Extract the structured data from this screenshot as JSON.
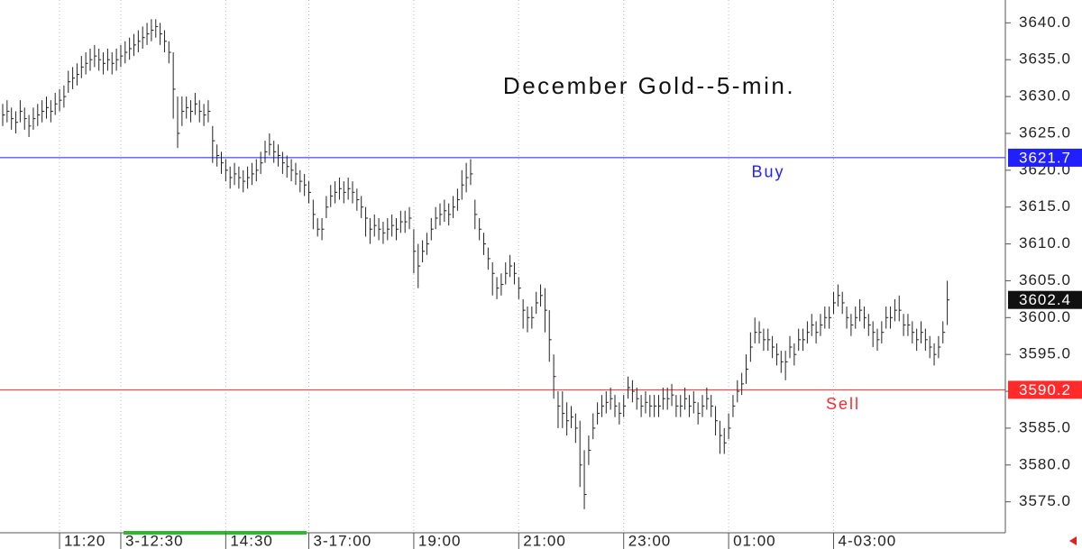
{
  "chart_data": {
    "type": "ohlc",
    "title": "December Gold--5-min.",
    "bar_color": "#222222",
    "grid": true,
    "ylim": [
      3570.8,
      3643.1
    ],
    "yticks": [
      {
        "value": 3575,
        "label": "3575.0"
      },
      {
        "value": 3580,
        "label": "3580.0"
      },
      {
        "value": 3585,
        "label": "3585.0"
      },
      {
        "value": 3590,
        "label": "3590.0"
      },
      {
        "value": 3595,
        "label": "3595.0"
      },
      {
        "value": 3600,
        "label": "3600.0"
      },
      {
        "value": 3605,
        "label": "3605.0"
      },
      {
        "value": 3610,
        "label": "3610.0"
      },
      {
        "value": 3615,
        "label": "3615.0"
      },
      {
        "value": 3620,
        "label": "3620.0"
      },
      {
        "value": 3625,
        "label": "3625.0"
      },
      {
        "value": 3630,
        "label": "3630.0"
      },
      {
        "value": 3635,
        "label": "3635.0"
      },
      {
        "value": 3640,
        "label": "3640.0"
      }
    ],
    "levels": [
      {
        "name": "Buy",
        "value": 3621.7,
        "color": "#1f1fff"
      },
      {
        "name": "Sell",
        "value": 3590.2,
        "color": "#ff2a2a"
      }
    ],
    "last_color": "#111111",
    "categories": [
      null,
      null,
      null,
      null,
      null,
      null,
      null,
      null,
      null,
      null,
      null,
      null,
      null,
      "11:20",
      null,
      null,
      null,
      null,
      null,
      null,
      null,
      null,
      null,
      null,
      null,
      null,
      null,
      "3-12:30",
      null,
      null,
      null,
      null,
      null,
      null,
      null,
      null,
      null,
      null,
      null,
      null,
      null,
      null,
      null,
      null,
      null,
      null,
      null,
      null,
      null,
      null,
      null,
      "14:30",
      null,
      null,
      null,
      null,
      null,
      null,
      null,
      null,
      null,
      null,
      null,
      null,
      null,
      null,
      null,
      null,
      null,
      null,
      "3-17:00",
      null,
      null,
      null,
      null,
      null,
      null,
      null,
      null,
      null,
      null,
      null,
      null,
      null,
      null,
      null,
      null,
      null,
      null,
      null,
      null,
      null,
      null,
      null,
      "19:00",
      null,
      null,
      null,
      null,
      null,
      null,
      null,
      null,
      null,
      null,
      null,
      null,
      null,
      null,
      null,
      null,
      null,
      null,
      null,
      null,
      null,
      null,
      null,
      "21:00",
      null,
      null,
      null,
      null,
      null,
      null,
      null,
      null,
      null,
      null,
      null,
      null,
      null,
      null,
      null,
      null,
      null,
      null,
      null,
      null,
      null,
      null,
      null,
      "23:00",
      null,
      null,
      null,
      null,
      null,
      null,
      null,
      null,
      null,
      null,
      null,
      null,
      null,
      null,
      null,
      null,
      null,
      null,
      null,
      null,
      null,
      null,
      null,
      "01:00",
      null,
      null,
      null,
      null,
      null,
      null,
      null,
      null,
      null,
      null,
      null,
      null,
      null,
      null,
      null,
      null,
      null,
      null,
      null,
      null,
      null,
      null,
      null,
      "4-03:00",
      null,
      null,
      null,
      null,
      null,
      null,
      null,
      null,
      null,
      null,
      null,
      null,
      null,
      null,
      null,
      null,
      null,
      null,
      null,
      null,
      null,
      null,
      null,
      null,
      null,
      null
    ],
    "high": [
      3629,
      3629.5,
      3628.5,
      3628,
      3629.5,
      3628.5,
      3627.5,
      3628.5,
      3629,
      3629.5,
      3630,
      3629.5,
      3630.5,
      3631,
      3631.5,
      3633.5,
      3634,
      3634.5,
      3635.5,
      3636,
      3636.5,
      3637,
      3636.5,
      3636,
      3636.5,
      3636,
      3636.5,
      3637,
      3637.5,
      3638,
      3638.5,
      3639,
      3639.5,
      3640,
      3640.5,
      3640.5,
      3640,
      3639,
      3637.5,
      3636,
      3630,
      3630,
      3630,
      3629.5,
      3630.5,
      3629.5,
      3629,
      3629.5,
      3626,
      3623.5,
      3622.5,
      3621.5,
      3620.5,
      3621,
      3620.5,
      3620,
      3620.5,
      3621,
      3621.5,
      3622.5,
      3624,
      3625,
      3624,
      3623.5,
      3622.5,
      3622,
      3621.5,
      3621,
      3620,
      3619.5,
      3618.5,
      3616,
      3613.5,
      3613.5,
      3616.5,
      3618,
      3618.5,
      3619,
      3618.5,
      3619,
      3618.5,
      3617.5,
      3616.5,
      3615,
      3613.5,
      3614,
      3613.5,
      3613,
      3613.5,
      3614,
      3613.5,
      3614.5,
      3614.5,
      3615,
      3612,
      3610,
      3610.5,
      3611.5,
      3613.5,
      3615,
      3615.5,
      3616,
      3615.5,
      3616.5,
      3617.5,
      3620,
      3621,
      3621.5,
      3616,
      3613.5,
      3611.5,
      3609.5,
      3607.5,
      3605.5,
      3606,
      3607.5,
      3608.5,
      3607.5,
      3605.5,
      3602.5,
      3601.5,
      3601.5,
      3603.5,
      3604.5,
      3604,
      3601,
      3595,
      3590,
      3590,
      3588.5,
      3588,
      3587,
      3586,
      3582,
      3584,
      3587,
      3588.5,
      3589.5,
      3590,
      3590.5,
      3589.5,
      3588.5,
      3589.5,
      3592,
      3591.5,
      3590.5,
      3589.5,
      3590,
      3589.5,
      3589.5,
      3589.5,
      3590.5,
      3590.5,
      3591,
      3589.5,
      3589.5,
      3590.5,
      3589.5,
      3590,
      3588.5,
      3589.5,
      3590.5,
      3589.5,
      3588,
      3586,
      3585,
      3587,
      3589.5,
      3591.5,
      3592.5,
      3595,
      3598,
      3600,
      3599.5,
      3598.5,
      3598.5,
      3597.5,
      3596.5,
      3595.5,
      3595.5,
      3597.5,
      3596.5,
      3598.5,
      3598.5,
      3599.5,
      3600.5,
      3599.5,
      3600.5,
      3601.5,
      3601.5,
      3603.5,
      3604.5,
      3603.5,
      3601.5,
      3600.5,
      3601.5,
      3602.5,
      3601.5,
      3600.5,
      3599.5,
      3598.5,
      3599.5,
      3601.5,
      3601.5,
      3602.5,
      3603,
      3600.5,
      3600.5,
      3599.5,
      3598.5,
      3599.5,
      3598.5,
      3597.5,
      3596.5,
      3597.5,
      3599.5,
      3605
    ],
    "low": [
      3626,
      3626.5,
      3625.5,
      3625,
      3626.5,
      3625.5,
      3624.5,
      3625.5,
      3626,
      3626.5,
      3627,
      3626.5,
      3627.5,
      3628,
      3628.5,
      3630.5,
      3631,
      3631.5,
      3632.5,
      3633,
      3633.5,
      3634,
      3633.5,
      3633,
      3633.5,
      3633,
      3633.5,
      3634,
      3634.5,
      3635,
      3635.5,
      3636,
      3636.5,
      3637,
      3637.5,
      3638,
      3637,
      3636,
      3634.5,
      3627,
      3623,
      3626,
      3627,
      3626.5,
      3627.5,
      3626.5,
      3626,
      3626.5,
      3621,
      3620.5,
      3619.5,
      3618.5,
      3617.5,
      3618,
      3617.5,
      3617,
      3617.5,
      3618,
      3618.5,
      3619.5,
      3621,
      3622,
      3621,
      3620.5,
      3619.5,
      3619,
      3618.5,
      3618,
      3617,
      3616.5,
      3615.5,
      3612,
      3611,
      3610.5,
      3613.5,
      3615,
      3615.5,
      3616,
      3615.5,
      3616,
      3615.5,
      3614.5,
      3613.5,
      3611,
      3610,
      3611,
      3610.5,
      3610,
      3610.5,
      3611,
      3610.5,
      3611.5,
      3611.5,
      3612,
      3606,
      3604,
      3607.5,
      3608.5,
      3610.5,
      3612,
      3612.5,
      3613,
      3612.5,
      3613.5,
      3614.5,
      3616,
      3617,
      3618,
      3612,
      3610.5,
      3608.5,
      3606.5,
      3603,
      3602.5,
      3603,
      3604.5,
      3605.5,
      3604.5,
      3602.5,
      3598.5,
      3598,
      3598.5,
      3600.5,
      3601.5,
      3598,
      3594,
      3589,
      3585,
      3585,
      3584,
      3585,
      3583,
      3577,
      3574,
      3580,
      3583.5,
      3585.5,
      3586.5,
      3587,
      3587.5,
      3586.5,
      3585.5,
      3586.5,
      3589,
      3588.5,
      3587.5,
      3586.5,
      3587,
      3586.5,
      3586.5,
      3586.5,
      3587.5,
      3587.5,
      3588,
      3586.5,
      3586.5,
      3587.5,
      3586.5,
      3587,
      3585.5,
      3586.5,
      3587.5,
      3586.5,
      3584,
      3581.5,
      3581.5,
      3583.5,
      3586.5,
      3588.5,
      3589.5,
      3591,
      3594,
      3596.5,
      3596.5,
      3595.5,
      3595.5,
      3594.5,
      3593.5,
      3592.5,
      3591.5,
      3594.5,
      3593.5,
      3595.5,
      3595.5,
      3596.5,
      3597.5,
      3596.5,
      3597.5,
      3598.5,
      3598.5,
      3600.5,
      3601.5,
      3600.5,
      3598.5,
      3597.5,
      3598.5,
      3599.5,
      3598.5,
      3597.5,
      3596,
      3595.5,
      3596.5,
      3598.5,
      3598.5,
      3599.5,
      3599.5,
      3597.5,
      3597.5,
      3596.5,
      3595.5,
      3596.5,
      3595.5,
      3594.5,
      3593.5,
      3594.5,
      3596.5,
      3599
    ],
    "close": [
      3627.5,
      3628,
      3627,
      3626.5,
      3628,
      3627,
      3626,
      3627,
      3627.5,
      3628,
      3628.5,
      3628,
      3629,
      3629.5,
      3630,
      3632,
      3632.5,
      3633,
      3634,
      3634.5,
      3635,
      3635.5,
      3635,
      3634.5,
      3635,
      3634.5,
      3635,
      3635.5,
      3636,
      3636.5,
      3637,
      3637.5,
      3638,
      3638.5,
      3639,
      3639.5,
      3638.5,
      3637.5,
      3636,
      3631,
      3625,
      3628,
      3628.5,
      3628,
      3629,
      3628,
      3627.5,
      3628,
      3624,
      3622,
      3621,
      3620,
      3619,
      3619.5,
      3619,
      3618.5,
      3619,
      3619.5,
      3620,
      3621,
      3622.5,
      3623.5,
      3622.5,
      3622,
      3621,
      3620.5,
      3620,
      3619.5,
      3618.5,
      3618,
      3617,
      3614,
      3612,
      3612,
      3615,
      3616.5,
      3617,
      3617.5,
      3617,
      3617.5,
      3617,
      3616,
      3615,
      3613.5,
      3612,
      3612.5,
      3612,
      3611.5,
      3612,
      3612.5,
      3612,
      3613,
      3613,
      3613.5,
      3609,
      3607,
      3609,
      3610,
      3612,
      3613.5,
      3614,
      3614.5,
      3614,
      3615,
      3616,
      3618,
      3619,
      3619.5,
      3614,
      3612,
      3610,
      3608,
      3606,
      3604,
      3604.5,
      3606,
      3607,
      3606,
      3604,
      3601,
      3600,
      3600,
      3602,
      3603,
      3601,
      3597,
      3592,
      3588,
      3587,
      3586,
      3586.5,
      3585,
      3580,
      3576,
      3582,
      3585,
      3587,
      3588,
      3588.5,
      3589,
      3588,
      3587,
      3588,
      3590.5,
      3590,
      3589,
      3588,
      3588.5,
      3588,
      3588,
      3588,
      3589,
      3589,
      3589.5,
      3588,
      3588,
      3589,
      3588,
      3588.5,
      3587,
      3588,
      3589,
      3588,
      3586,
      3584,
      3583,
      3585,
      3588,
      3590,
      3591,
      3593,
      3596,
      3598,
      3598,
      3597,
      3597,
      3596,
      3595,
      3594,
      3594,
      3596,
      3595,
      3597,
      3597,
      3598,
      3599,
      3598,
      3599,
      3600,
      3600,
      3602,
      3603,
      3602,
      3600,
      3599,
      3600,
      3601,
      3600,
      3599,
      3598,
      3597,
      3598,
      3600,
      3600,
      3601,
      3601,
      3599,
      3599,
      3598,
      3597,
      3598,
      3597,
      3596,
      3595,
      3596,
      3598,
      3602.4
    ]
  }
}
